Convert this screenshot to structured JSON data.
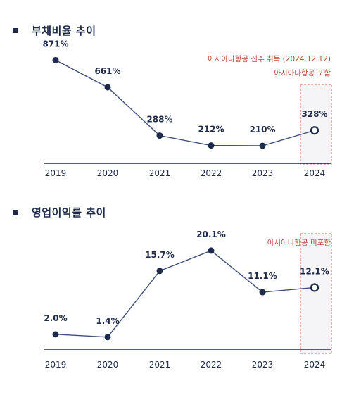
{
  "sections": [
    {
      "title": "부채비율 추이"
    },
    {
      "title": "영업이익률 추이"
    }
  ],
  "chart_data": [
    {
      "type": "line",
      "title": "부채비율 추이",
      "categories": [
        "2019",
        "2020",
        "2021",
        "2022",
        "2023",
        "2024"
      ],
      "values": [
        871,
        661,
        288,
        212,
        210,
        328
      ],
      "labels": [
        "871%",
        "661%",
        "288%",
        "212%",
        "210%",
        "328%"
      ],
      "ylim": [
        150,
        900
      ],
      "annotations": [
        "아시아나항공 신주 취득 (2024.12.12)",
        "아시아나항공 포함"
      ],
      "highlight_category": "2024",
      "colors": {
        "line": "#3d4f7a",
        "point": "#1e2a4a",
        "note": "#c0453a",
        "box": "#d9695c"
      }
    },
    {
      "type": "line",
      "title": "영업이익률 추이",
      "categories": [
        "2019",
        "2020",
        "2021",
        "2022",
        "2023",
        "2024"
      ],
      "values": [
        2.0,
        1.4,
        15.7,
        20.1,
        11.1,
        12.1
      ],
      "labels": [
        "2.0%",
        "1.4%",
        "15.7%",
        "20.1%",
        "11.1%",
        "12.1%"
      ],
      "ylim": [
        0,
        21
      ],
      "annotations": [
        "아시아나항공 미포함"
      ],
      "highlight_category": "2024",
      "colors": {
        "line": "#3d4f7a",
        "point": "#1e2a4a",
        "note": "#c0453a",
        "box": "#d9695c"
      }
    }
  ]
}
